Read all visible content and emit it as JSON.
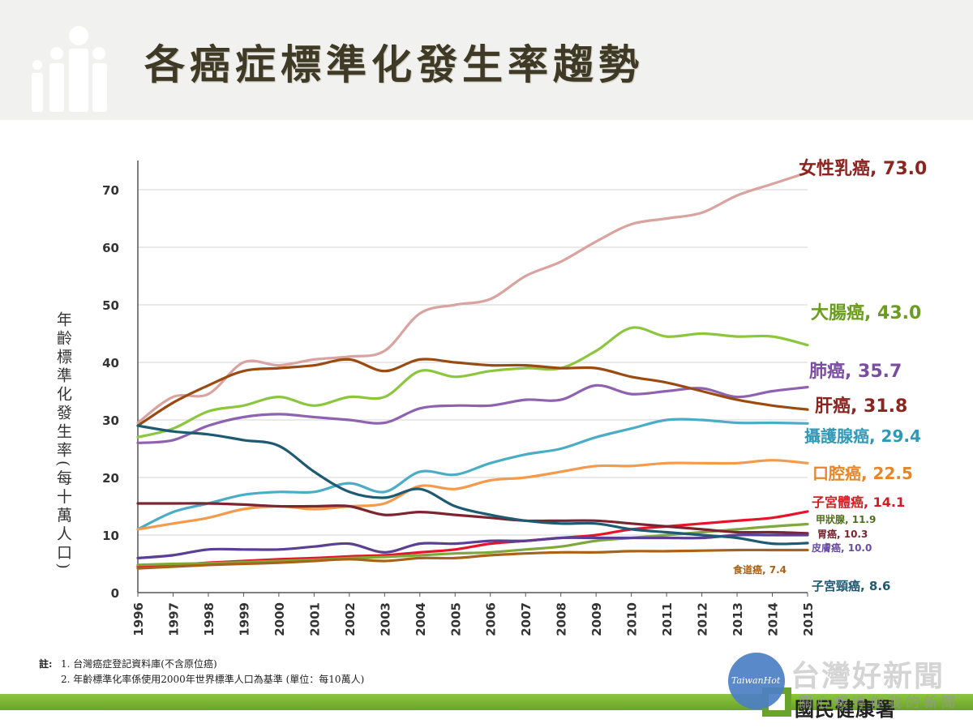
{
  "slide": {
    "title": "各癌症標準化發生率趨勢"
  },
  "notes": {
    "prefix": "註:",
    "line1": "1. 台灣癌症登記資料庫(不含原位癌)",
    "line2": "2. 年齡標準化率係使用2000年世界標準人口為基準 (單位：每10萬人)"
  },
  "footer": {
    "org_name": "國民健康署",
    "watermark_brand": "TaiwanHot",
    "watermark_title": "台灣好新聞",
    "watermark_subtitle": "關心報導你我的新聞"
  },
  "chart_data": {
    "type": "line",
    "title": "",
    "xlabel": "",
    "ylabel": "年齡標準化發生率(每十萬人口)",
    "x": [
      "1996",
      "1997",
      "1998",
      "1999",
      "2000",
      "2001",
      "2002",
      "2003",
      "2004",
      "2005",
      "2006",
      "2007",
      "2008",
      "2009",
      "2010",
      "2011",
      "2012",
      "2013",
      "2014",
      "2015"
    ],
    "ylim": [
      0,
      75
    ],
    "yticks": [
      "0",
      "10",
      "20",
      "30",
      "40",
      "50",
      "60",
      "70"
    ],
    "grid": true,
    "legend": "end-labels",
    "series": [
      {
        "name": "女性乳癌",
        "end_label": "73.0",
        "color": "#d9a3a0",
        "label_color": "#8b2520",
        "values": [
          29.5,
          34,
          34.5,
          40,
          39.5,
          40.5,
          41,
          42,
          48.5,
          50,
          51,
          55,
          57.5,
          61,
          64,
          65,
          66,
          69,
          71,
          73.0
        ]
      },
      {
        "name": "大腸癌",
        "end_label": "43.0",
        "color": "#8cc63f",
        "label_color": "#6a9c1f",
        "values": [
          27,
          28.5,
          31.5,
          32.5,
          34,
          32.5,
          34,
          34,
          38.5,
          37.5,
          38.5,
          39,
          39,
          42,
          46,
          44.5,
          45,
          44.5,
          44.5,
          43.0
        ]
      },
      {
        "name": "肺癌",
        "end_label": "35.7",
        "color": "#8e62b0",
        "label_color": "#7a4ea1",
        "values": [
          26,
          26.5,
          29,
          30.5,
          31,
          30.5,
          30,
          29.5,
          32,
          32.5,
          32.5,
          33.5,
          33.5,
          36,
          34.5,
          35,
          35.5,
          34,
          35,
          35.7
        ]
      },
      {
        "name": "肝癌",
        "end_label": "31.8",
        "color": "#9a4b12",
        "label_color": "#8b2520",
        "values": [
          29,
          33,
          36,
          38.5,
          39,
          39.5,
          40.5,
          38.5,
          40.5,
          40,
          39.5,
          39.5,
          39,
          39,
          37.5,
          36.5,
          35,
          33.5,
          32.5,
          31.8
        ]
      },
      {
        "name": "攝護腺癌",
        "end_label": "29.4",
        "color": "#4bacc6",
        "label_color": "#2e9ab8",
        "values": [
          11,
          14,
          15.5,
          17,
          17.5,
          17.5,
          19,
          17.5,
          21,
          20.5,
          22.5,
          24,
          25,
          27,
          28.5,
          30,
          30,
          29.5,
          29.5,
          29.4
        ]
      },
      {
        "name": "口腔癌",
        "end_label": "22.5",
        "color": "#f39a4c",
        "label_color": "#e6862a",
        "values": [
          11,
          12,
          13,
          14.5,
          15,
          14.5,
          15,
          15.5,
          18.5,
          18,
          19.5,
          20,
          21,
          22,
          22,
          22.5,
          22.5,
          22.5,
          23,
          22.5
        ]
      },
      {
        "name": "子宮體癌",
        "end_label": "14.1",
        "color": "#e8132a",
        "label_color": "#d71920",
        "values": [
          4.5,
          4.8,
          5.2,
          5.5,
          5.8,
          6,
          6.3,
          6.5,
          7,
          7.5,
          8.5,
          9,
          9.5,
          10,
          11,
          11.5,
          12,
          12.5,
          13,
          14.1
        ]
      },
      {
        "name": "甲狀腺",
        "end_label": "11.9",
        "color": "#7ea83d",
        "label_color": "#4f6f1f",
        "values": [
          4.8,
          5,
          5.1,
          5.3,
          5.5,
          5.7,
          6,
          6.2,
          6.5,
          6.8,
          7,
          7.5,
          8,
          9,
          9.5,
          10,
          10.5,
          11,
          11.5,
          11.9
        ]
      },
      {
        "name": "胃癌",
        "end_label": "10.3",
        "color": "#7a2530",
        "label_color": "#7a2530",
        "values": [
          15.5,
          15.5,
          15.5,
          15.3,
          15,
          15,
          15,
          13.5,
          14,
          13.5,
          13,
          12.5,
          12.5,
          12.5,
          12,
          11.5,
          11,
          10.5,
          10.5,
          10.3
        ]
      },
      {
        "name": "皮膚癌",
        "end_label": "10.0",
        "color": "#5b3f93",
        "label_color": "#6a4ea6",
        "values": [
          6,
          6.5,
          7.5,
          7.5,
          7.5,
          8,
          8.5,
          7,
          8.5,
          8.5,
          9,
          9,
          9.5,
          9.5,
          9.5,
          9.5,
          9.5,
          10,
          10,
          10.0
        ]
      },
      {
        "name": "食道癌",
        "end_label": "7.4",
        "color": "#a8631a",
        "label_color": "#a8631a",
        "values": [
          4.2,
          4.5,
          4.8,
          5,
          5.2,
          5.5,
          5.8,
          5.5,
          6,
          6,
          6.5,
          6.8,
          7,
          7,
          7.2,
          7.2,
          7.3,
          7.4,
          7.4,
          7.4
        ]
      },
      {
        "name": "子宮頸癌",
        "end_label": "8.6",
        "color": "#1f5a73",
        "label_color": "#1f5a73",
        "values": [
          29,
          28,
          27.5,
          26.5,
          25.5,
          21,
          17.5,
          16.5,
          18,
          15,
          13.5,
          12.5,
          12,
          12,
          11,
          10.5,
          10,
          9.5,
          8.5,
          8.6
        ]
      }
    ]
  }
}
